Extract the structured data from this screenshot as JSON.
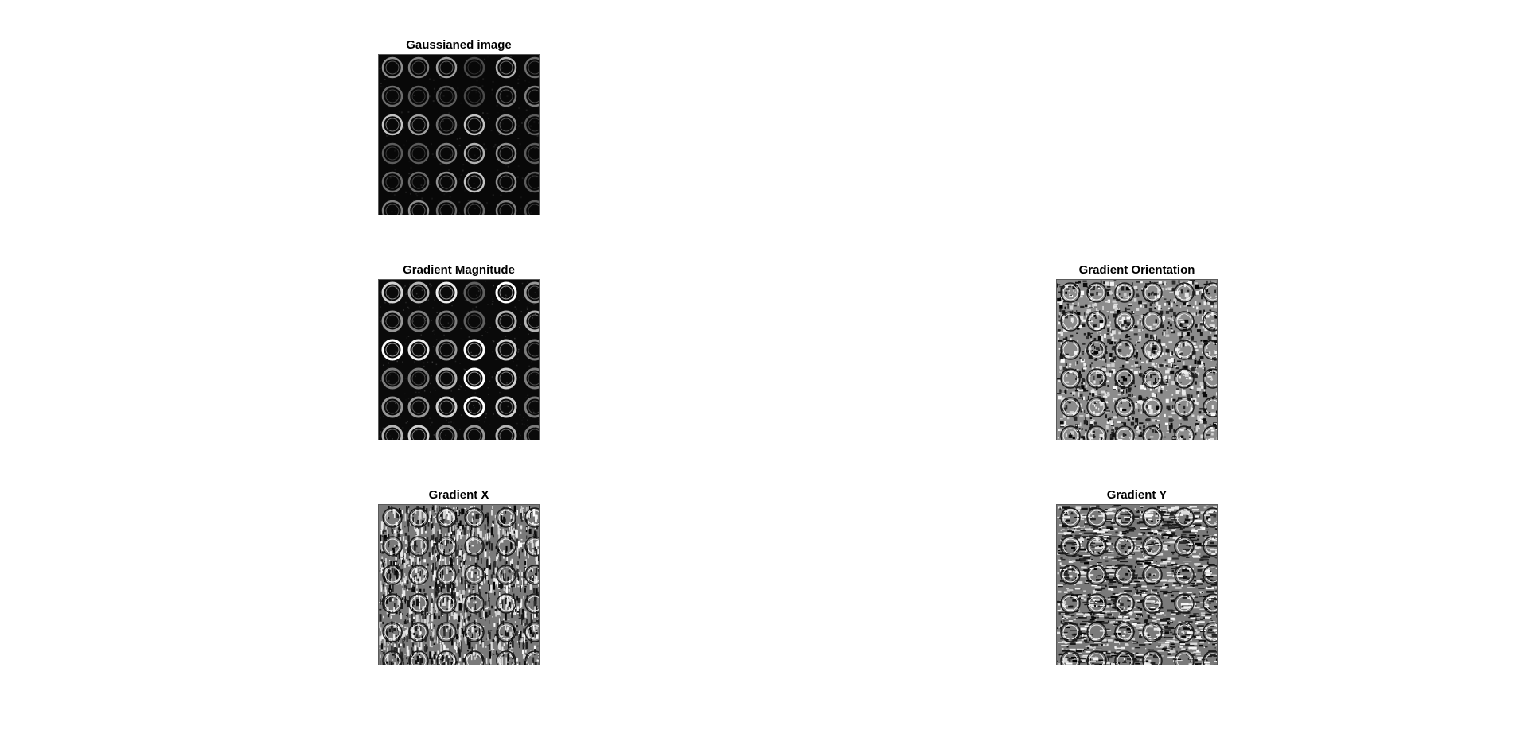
{
  "figure": {
    "subplots": [
      {
        "id": "gaussian",
        "title": "Gaussianed image",
        "kind": "gaussian"
      },
      {
        "id": "magnitude",
        "title": "Gradient Magnitude",
        "kind": "magnitude"
      },
      {
        "id": "orientation",
        "title": "Gradient Orientation",
        "kind": "orientation"
      },
      {
        "id": "gradx",
        "title": "Gradient X",
        "kind": "gradx"
      },
      {
        "id": "grady",
        "title": "Gradient Y",
        "kind": "grady"
      }
    ]
  }
}
